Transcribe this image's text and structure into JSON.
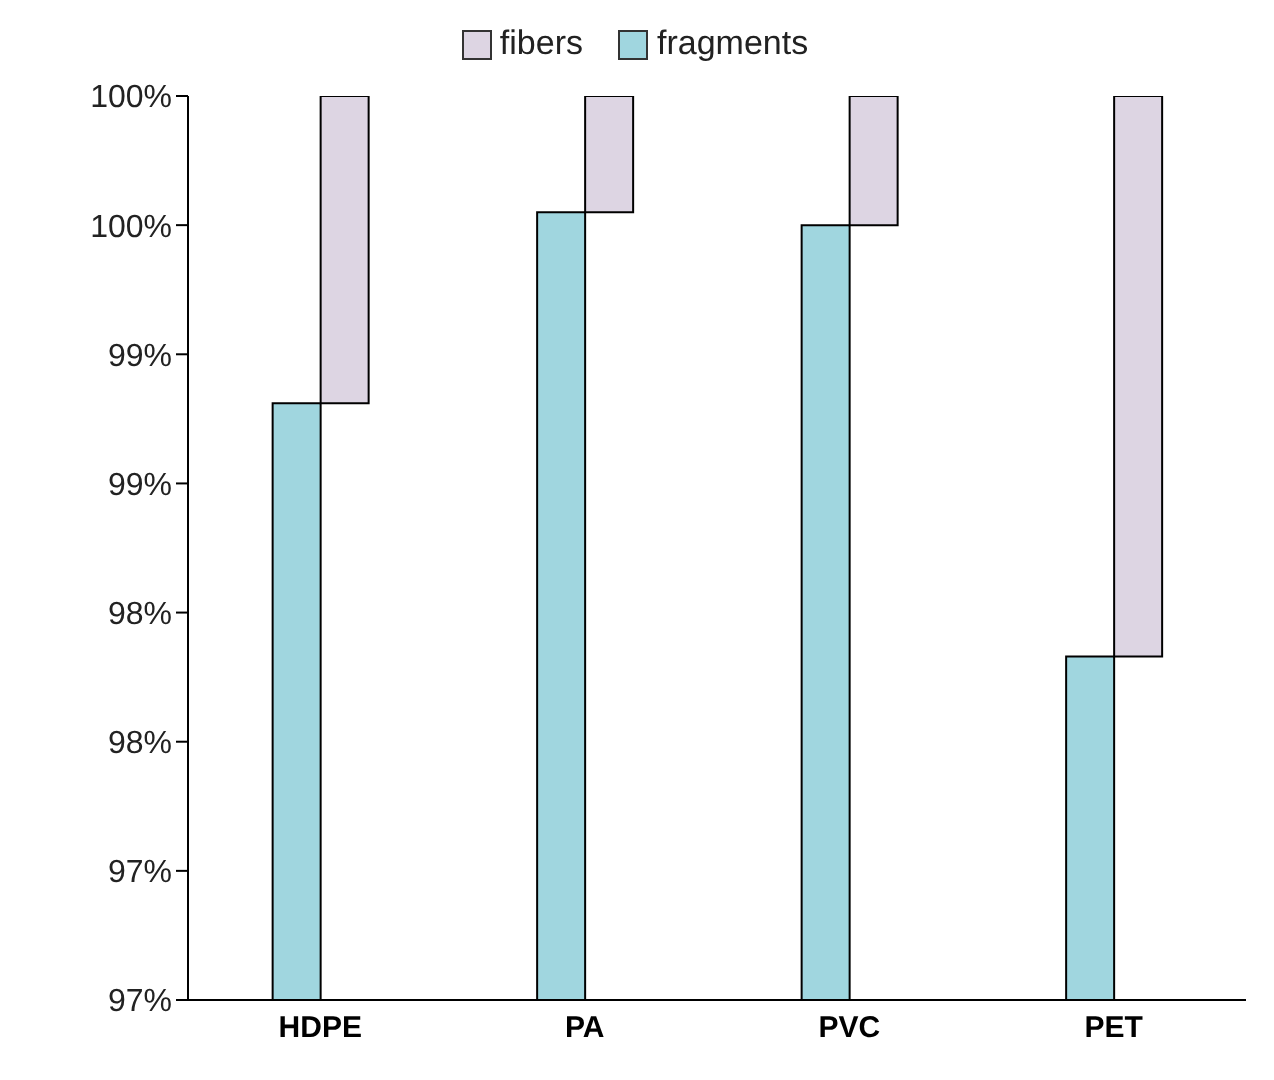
{
  "chart_data": {
    "type": "bar",
    "categories": [
      "HDPE",
      "PA",
      "PVC",
      "PET"
    ],
    "series": [
      {
        "name": "fragments",
        "color": "#a0d6df",
        "values": [
          98.81,
          99.55,
          99.5,
          97.83
        ]
      },
      {
        "name": "fibers",
        "color": "#ddd5e3",
        "values": [
          1.19,
          0.45,
          0.5,
          2.17
        ],
        "base": [
          98.81,
          99.55,
          99.5,
          97.83
        ]
      }
    ],
    "ylim": [
      96.5,
      100
    ],
    "yticks": [
      {
        "value": 96.5,
        "label": "97%"
      },
      {
        "value": 97,
        "label": "97%"
      },
      {
        "value": 97.5,
        "label": "98%"
      },
      {
        "value": 98,
        "label": "98%"
      },
      {
        "value": 98.5,
        "label": "99%"
      },
      {
        "value": 99,
        "label": "99%"
      },
      {
        "value": 99.5,
        "label": "100%"
      },
      {
        "value": 100,
        "label": "100%"
      }
    ],
    "grid": false,
    "legend": "top"
  }
}
